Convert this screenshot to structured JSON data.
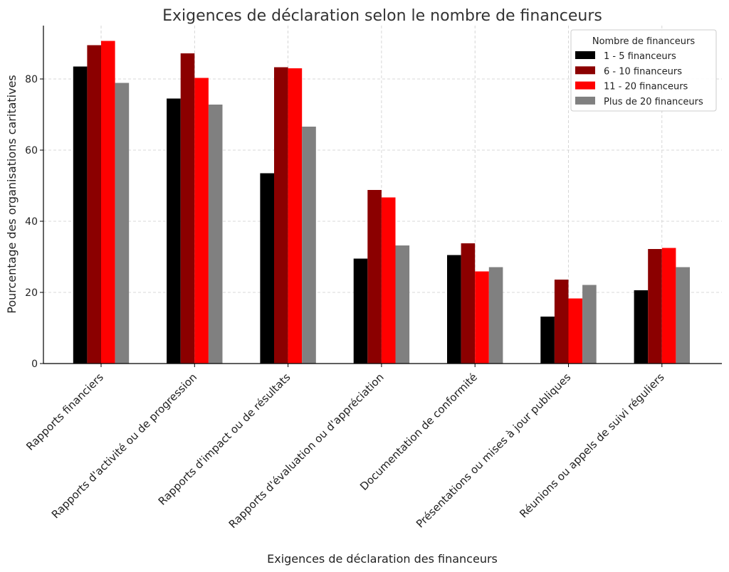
{
  "chart_data": {
    "type": "bar",
    "title": "Exigences de déclaration selon le nombre de financeurs",
    "xlabel": "Exigences de déclaration des financeurs",
    "ylabel": "Pourcentage des organisations caritatives",
    "ylim": [
      0,
      95
    ],
    "yticks": [
      0,
      20,
      40,
      60,
      80
    ],
    "grid": true,
    "legend_title": "Nombre de financeurs",
    "legend_position": "top-right",
    "categories": [
      "Rapports financiers",
      "Rapports d'activité ou de progression",
      "Rapports d'impact ou de résultats",
      "Rapports d'évaluation ou d'appréciation",
      "Documentation de conformité",
      "Présentations ou mises à jour publiques",
      "Réunions ou appels de suivi réguliers"
    ],
    "series": [
      {
        "name": "1 - 5 financeurs",
        "color": "#000000",
        "values": [
          83.5,
          74.5,
          53.5,
          29.5,
          30.5,
          13.2,
          20.6
        ]
      },
      {
        "name": "6 - 10 financeurs",
        "color": "#8b0000",
        "values": [
          89.5,
          87.2,
          83.3,
          48.8,
          33.8,
          23.6,
          32.2
        ]
      },
      {
        "name": "11 - 20 financeurs",
        "color": "#ff0000",
        "values": [
          90.7,
          80.3,
          83.0,
          46.7,
          25.9,
          18.3,
          32.5
        ]
      },
      {
        "name": "Plus de 20 financeurs",
        "color": "#808080",
        "values": [
          78.9,
          72.8,
          66.6,
          33.2,
          27.1,
          22.1,
          27.1
        ]
      }
    ]
  }
}
